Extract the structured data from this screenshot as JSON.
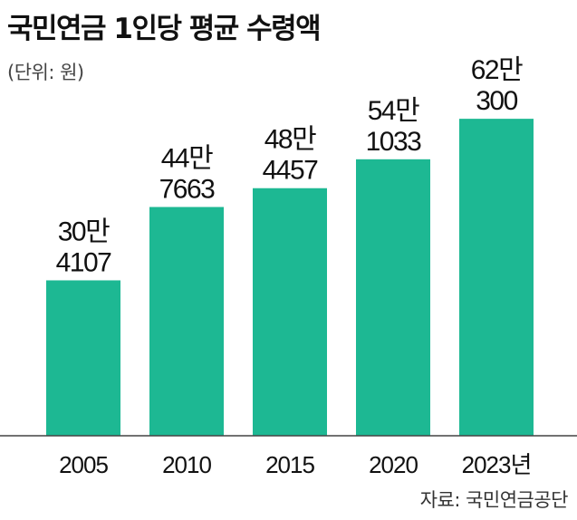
{
  "title": "국민연금 1인당 평균 수령액",
  "unit_note": "(단위: 원)",
  "source": "자료: 국민연금공단",
  "colors": {
    "bar": "#1db893",
    "axis": "#444444",
    "text": "#111111"
  },
  "chart_data": {
    "type": "bar",
    "title": "국민연금 1인당 평균 수령액",
    "unit": "원",
    "categories": [
      "2005",
      "2010",
      "2015",
      "2020",
      "2023년"
    ],
    "values": [
      304107,
      447663,
      484457,
      541033,
      620300
    ],
    "value_labels": [
      [
        "30만",
        "4107"
      ],
      [
        "44만",
        "7663"
      ],
      [
        "48만",
        "4457"
      ],
      [
        "54만",
        "1033"
      ],
      [
        "62만",
        "300"
      ]
    ],
    "ylim": [
      0,
      640000
    ],
    "grid": false,
    "legend": "none"
  }
}
